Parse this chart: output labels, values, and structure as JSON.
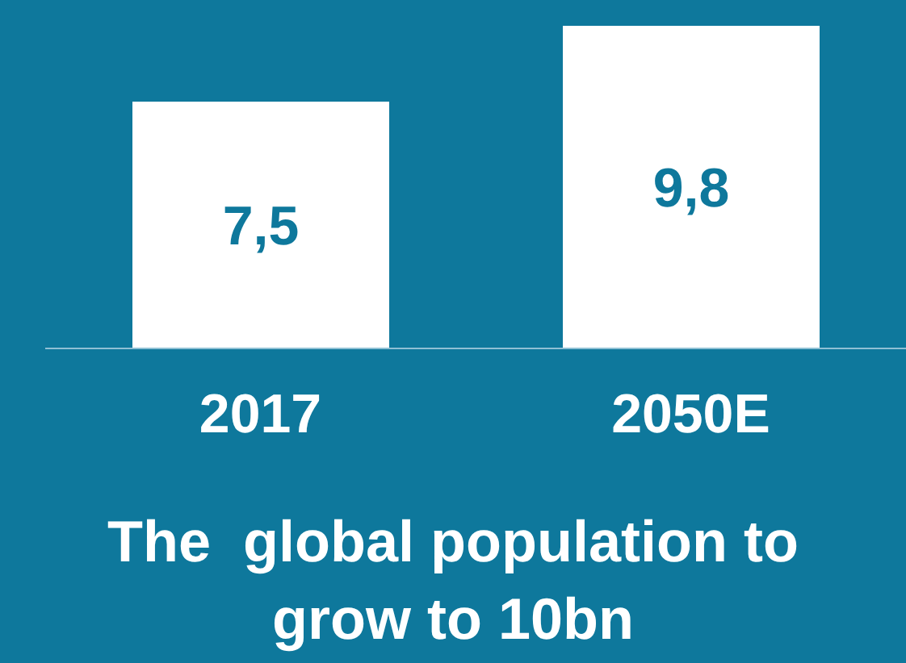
{
  "chart_data": {
    "type": "bar",
    "title": "The  global population to grow to 10bn",
    "categories": [
      "2017",
      "2050E"
    ],
    "values": [
      7.5,
      9.8
    ],
    "value_labels": [
      "7,5",
      "9,8"
    ],
    "color": "#ffffff",
    "grid": false,
    "legend": false
  }
}
